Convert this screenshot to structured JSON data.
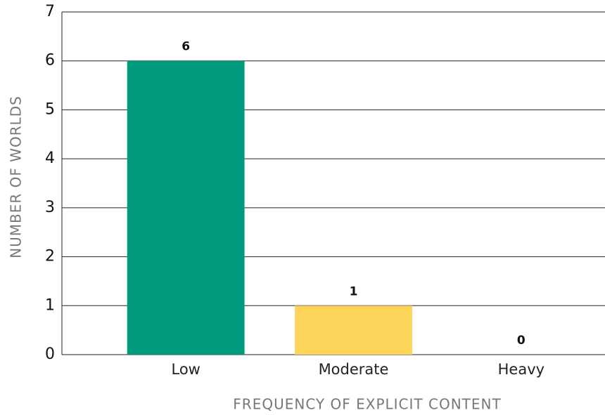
{
  "chart_data": {
    "type": "bar",
    "categories": [
      "Low",
      "Moderate",
      "Heavy"
    ],
    "values": [
      6,
      1,
      0
    ],
    "colors": [
      "#009b7d",
      "#fcd45a",
      "#e8a33d"
    ],
    "xlabel": "FREQUENCY OF EXPLICIT CONTENT",
    "ylabel": "NUMBER OF WORLDS",
    "ylim": [
      0,
      7
    ],
    "yticks": [
      0,
      1,
      2,
      3,
      4,
      5,
      6,
      7
    ],
    "grid": true
  }
}
